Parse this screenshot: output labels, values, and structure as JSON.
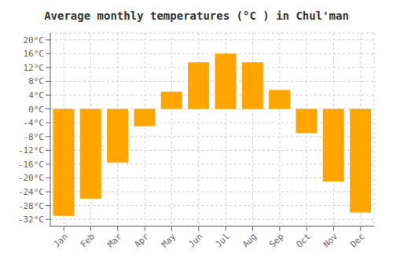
{
  "chart_data": {
    "type": "bar",
    "title": "Average monthly temperatures (°C ) in Chul'man",
    "categories": [
      "Jan",
      "Feb",
      "Mar",
      "Apr",
      "May",
      "Jun",
      "Jul",
      "Aug",
      "Sep",
      "Oct",
      "Nov",
      "Dec"
    ],
    "values": [
      -31,
      -26,
      -15.5,
      -5,
      5,
      13.5,
      16,
      13.5,
      5.5,
      -7,
      -21,
      -30
    ],
    "color": "#FFA500",
    "ylim": [
      -34,
      22
    ],
    "yticks": [
      {
        "value": -32,
        "label": "-32°C"
      },
      {
        "value": -28,
        "label": "-28°C"
      },
      {
        "value": -24,
        "label": "-24°C"
      },
      {
        "value": -20,
        "label": "-20°C"
      },
      {
        "value": -16,
        "label": "-16°C"
      },
      {
        "value": -12,
        "label": "-12°C"
      },
      {
        "value": -8,
        "label": "-8°C"
      },
      {
        "value": -4,
        "label": "-4°C"
      },
      {
        "value": 0,
        "label": "0°C"
      },
      {
        "value": 4,
        "label": "4°C"
      },
      {
        "value": 8,
        "label": "8°C"
      },
      {
        "value": 12,
        "label": "12°C"
      },
      {
        "value": 16,
        "label": "16°C"
      },
      {
        "value": 20,
        "label": "20°C"
      }
    ],
    "grid": true
  }
}
